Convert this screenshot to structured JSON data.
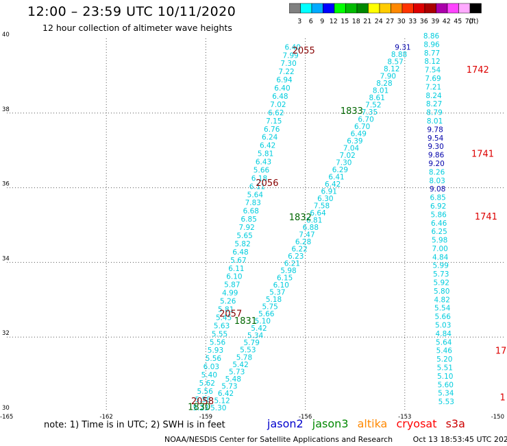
{
  "header": {
    "title": "12:00 – 23:59 UTC 10/11/2020",
    "subtitle": "12 hour collection of altimeter wave heights"
  },
  "color_scale": {
    "unit": "(ft)",
    "bins": [
      {
        "label": "3",
        "color": "#808080"
      },
      {
        "label": "6",
        "color": "#00ffff"
      },
      {
        "label": "9",
        "color": "#00aaff"
      },
      {
        "label": "12",
        "color": "#0000ff"
      },
      {
        "label": "15",
        "color": "#00ff00"
      },
      {
        "label": "18",
        "color": "#00bb00"
      },
      {
        "label": "21",
        "color": "#008800"
      },
      {
        "label": "24",
        "color": "#ffff00"
      },
      {
        "label": "27",
        "color": "#ffcc00"
      },
      {
        "label": "30",
        "color": "#ff8800"
      },
      {
        "label": "33",
        "color": "#ff3300"
      },
      {
        "label": "36",
        "color": "#dd0000"
      },
      {
        "label": "39",
        "color": "#aa0000"
      },
      {
        "label": "42",
        "color": "#aa00aa"
      },
      {
        "label": "45",
        "color": "#ff44ff"
      },
      {
        "label": "70",
        "color": "#ffaaff"
      },
      {
        "label": "",
        "color": "#000000"
      }
    ]
  },
  "axes": {
    "x_ticks": [
      "-165",
      "-162",
      "-159",
      "-156",
      "-153",
      "-150"
    ],
    "y_ticks": [
      "30",
      "32",
      "34",
      "36",
      "38",
      "40"
    ],
    "x_range": [
      -165,
      -150
    ],
    "y_range": [
      30,
      40
    ]
  },
  "tracks": [
    {
      "satellite": "jason3",
      "start": [
        -156.38,
        39.7
      ],
      "end": [
        -159.15,
        30.04
      ],
      "color": "#00ccdd",
      "values": [
        "6.40",
        "7.99",
        "7.30",
        "7.22",
        "6.94",
        "6.40",
        "6.48",
        "7.02",
        "6.62",
        "7.15",
        "6.76",
        "6.24",
        "6.42",
        "5.81",
        "6.43",
        "5.66",
        "6.18",
        "6.11",
        "5.64",
        "7.83",
        "6.68",
        "6.85",
        "7.92",
        "5.65",
        "5.82",
        "6.48",
        "5.67",
        "6.11",
        "6.10",
        "5.87",
        "4.99",
        "5.26",
        "5.81",
        "5.45",
        "5.63",
        "5.55",
        "5.56",
        "5.93",
        "5.56",
        "6.03",
        "5.40",
        "5.62",
        "5.56",
        "5.58",
        "5.23"
      ],
      "time_labels": [
        {
          "text": "2055",
          "lat": 39.6,
          "lon": -156.05,
          "color": "#880000"
        },
        {
          "text": "2056",
          "lat": 36.05,
          "lon": -157.15,
          "color": "#880000"
        },
        {
          "text": "2057",
          "lat": 32.55,
          "lon": -158.25,
          "color": "#880000"
        },
        {
          "text": "2058",
          "lat": 30.2,
          "lon": -159.1,
          "color": "#880000"
        }
      ]
    },
    {
      "satellite": "jason3",
      "start": [
        -153.06,
        39.7
      ],
      "end": [
        -158.62,
        30.04
      ],
      "color": "#00ccdd",
      "values": [
        "9.31",
        "8.88",
        "8.57",
        "8.12",
        "7.90",
        "8.28",
        "8.01",
        "8.61",
        "7.52",
        "7.35",
        "6.70",
        "6.70",
        "6.49",
        "6.39",
        "7.04",
        "7.02",
        "7.30",
        "6.29",
        "6.41",
        "6.42",
        "6.91",
        "6.30",
        "7.58",
        "6.64",
        "6.81",
        "6.88",
        "7.47",
        "6.28",
        "6.22",
        "6.23",
        "6.21",
        "5.98",
        "6.15",
        "6.10",
        "5.37",
        "5.18",
        "5.75",
        "5.66",
        "5.10",
        "5.42",
        "5.34",
        "5.79",
        "5.53",
        "5.78",
        "5.42",
        "5.73",
        "5.48",
        "5.73",
        "6.42",
        "5.12",
        "5.30"
      ],
      "time_labels": [
        {
          "text": "1833",
          "lat": 37.98,
          "lon": -154.6,
          "color": "#006600"
        },
        {
          "text": "1832",
          "lat": 35.13,
          "lon": -156.15,
          "color": "#006600"
        },
        {
          "text": "1831",
          "lat": 32.35,
          "lon": -157.8,
          "color": "#006600"
        },
        {
          "text": "1830",
          "lat": 30.05,
          "lon": -159.2,
          "color": "#006600"
        }
      ]
    },
    {
      "satellite": "s3a",
      "start": [
        -152.2,
        40.0
      ],
      "end": [
        -151.75,
        30.2
      ],
      "color": "#00ccdd",
      "values": [
        "8.86",
        "8.96",
        "8.77",
        "8.12",
        "7.54",
        "7.69",
        "7.21",
        "8.24",
        "8.27",
        "8.79",
        "8.01",
        "9.78",
        "9.54",
        "9.30",
        "9.86",
        "9.20",
        "8.26",
        "8.03",
        "9.08",
        "6.85",
        "6.92",
        "5.86",
        "6.46",
        "6.25",
        "5.98",
        "7.00",
        "4.84",
        "5.99",
        "5.73",
        "5.92",
        "5.80",
        "4.82",
        "5.54",
        "5.66",
        "5.03",
        "4.84",
        "5.64",
        "5.46",
        "5.20",
        "5.51",
        "5.10",
        "5.60",
        "5.34",
        "5.53"
      ],
      "time_labels": [
        {
          "text": "1742",
          "lat": 39.08,
          "lon": -150.8,
          "color": "#dd0000"
        },
        {
          "text": "1741",
          "lat": 36.83,
          "lon": -150.65,
          "color": "#dd0000"
        },
        {
          "text": "1741",
          "lat": 35.15,
          "lon": -150.55,
          "color": "#dd0000"
        },
        {
          "text": "17",
          "lat": 31.55,
          "lon": -150.1,
          "color": "#dd0000"
        },
        {
          "text": "1",
          "lat": 30.3,
          "lon": -150.05,
          "color": "#dd0000"
        }
      ]
    }
  ],
  "footer": {
    "note": "note:  1) Time is in UTC;  2) SWH is in feet",
    "legend": [
      {
        "name": "jason2",
        "color": "#0000cc"
      },
      {
        "name": "jason3",
        "color": "#008800"
      },
      {
        "name": "altika",
        "color": "#ff8800"
      },
      {
        "name": "cryosat",
        "color": "#ff0000"
      },
      {
        "name": "s3a",
        "color": "#cc0000"
      }
    ],
    "credit": "NOAA/NESDIS Center for Satellite Applications and Research",
    "timestamp": "Oct 13 18:53:45 UTC 2020"
  }
}
